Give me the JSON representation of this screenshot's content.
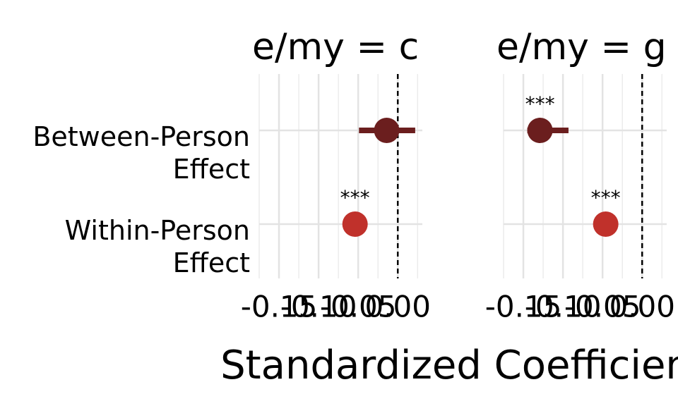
{
  "chart_data": [
    {
      "type": "coefficient",
      "title": "e/my = c",
      "categories": [
        "Between-Person\nEffect",
        "Within-Person\nEffect"
      ],
      "values": [
        -0.014,
        -0.054
      ],
      "ci_low": [
        -0.049,
        -0.062
      ],
      "ci_high": [
        0.022,
        -0.047
      ],
      "value_labels": [
        null,
        "***"
      ],
      "colors": [
        "#6b1e1e",
        "#c0312b"
      ],
      "xlim": [
        -0.175,
        0.031
      ],
      "xticks": [
        {
          "value": -0.15,
          "label": "-0.15"
        },
        {
          "value": -0.1,
          "label": "-0.10"
        },
        {
          "value": -0.05,
          "label": "-0.05"
        },
        {
          "value": 0,
          "label": "0.00"
        }
      ],
      "xminorticks": [
        -0.175,
        -0.125,
        -0.075,
        -0.025,
        0.025
      ],
      "refline": 0,
      "grid": true,
      "xlabel": "Standardized Coefficient"
    },
    {
      "type": "coefficient",
      "title": "e/my = g",
      "values": [
        -0.129,
        -0.046
      ],
      "ci_low": [
        -0.145,
        -0.05
      ],
      "ci_high": [
        -0.093,
        -0.042
      ],
      "value_labels": [
        "***",
        "***"
      ],
      "colors": [
        "#6b1e1e",
        "#c0312b"
      ],
      "xlim": [
        -0.175,
        0.031
      ],
      "xticks": [
        {
          "value": -0.15,
          "label": "-0.15"
        },
        {
          "value": -0.1,
          "label": "-0.10"
        },
        {
          "value": -0.05,
          "label": "-0.05"
        },
        {
          "value": 0,
          "label": "0.00"
        }
      ],
      "xminorticks": [
        -0.175,
        -0.125,
        -0.075,
        -0.025,
        0.025
      ],
      "refline": 0,
      "grid": true
    }
  ]
}
